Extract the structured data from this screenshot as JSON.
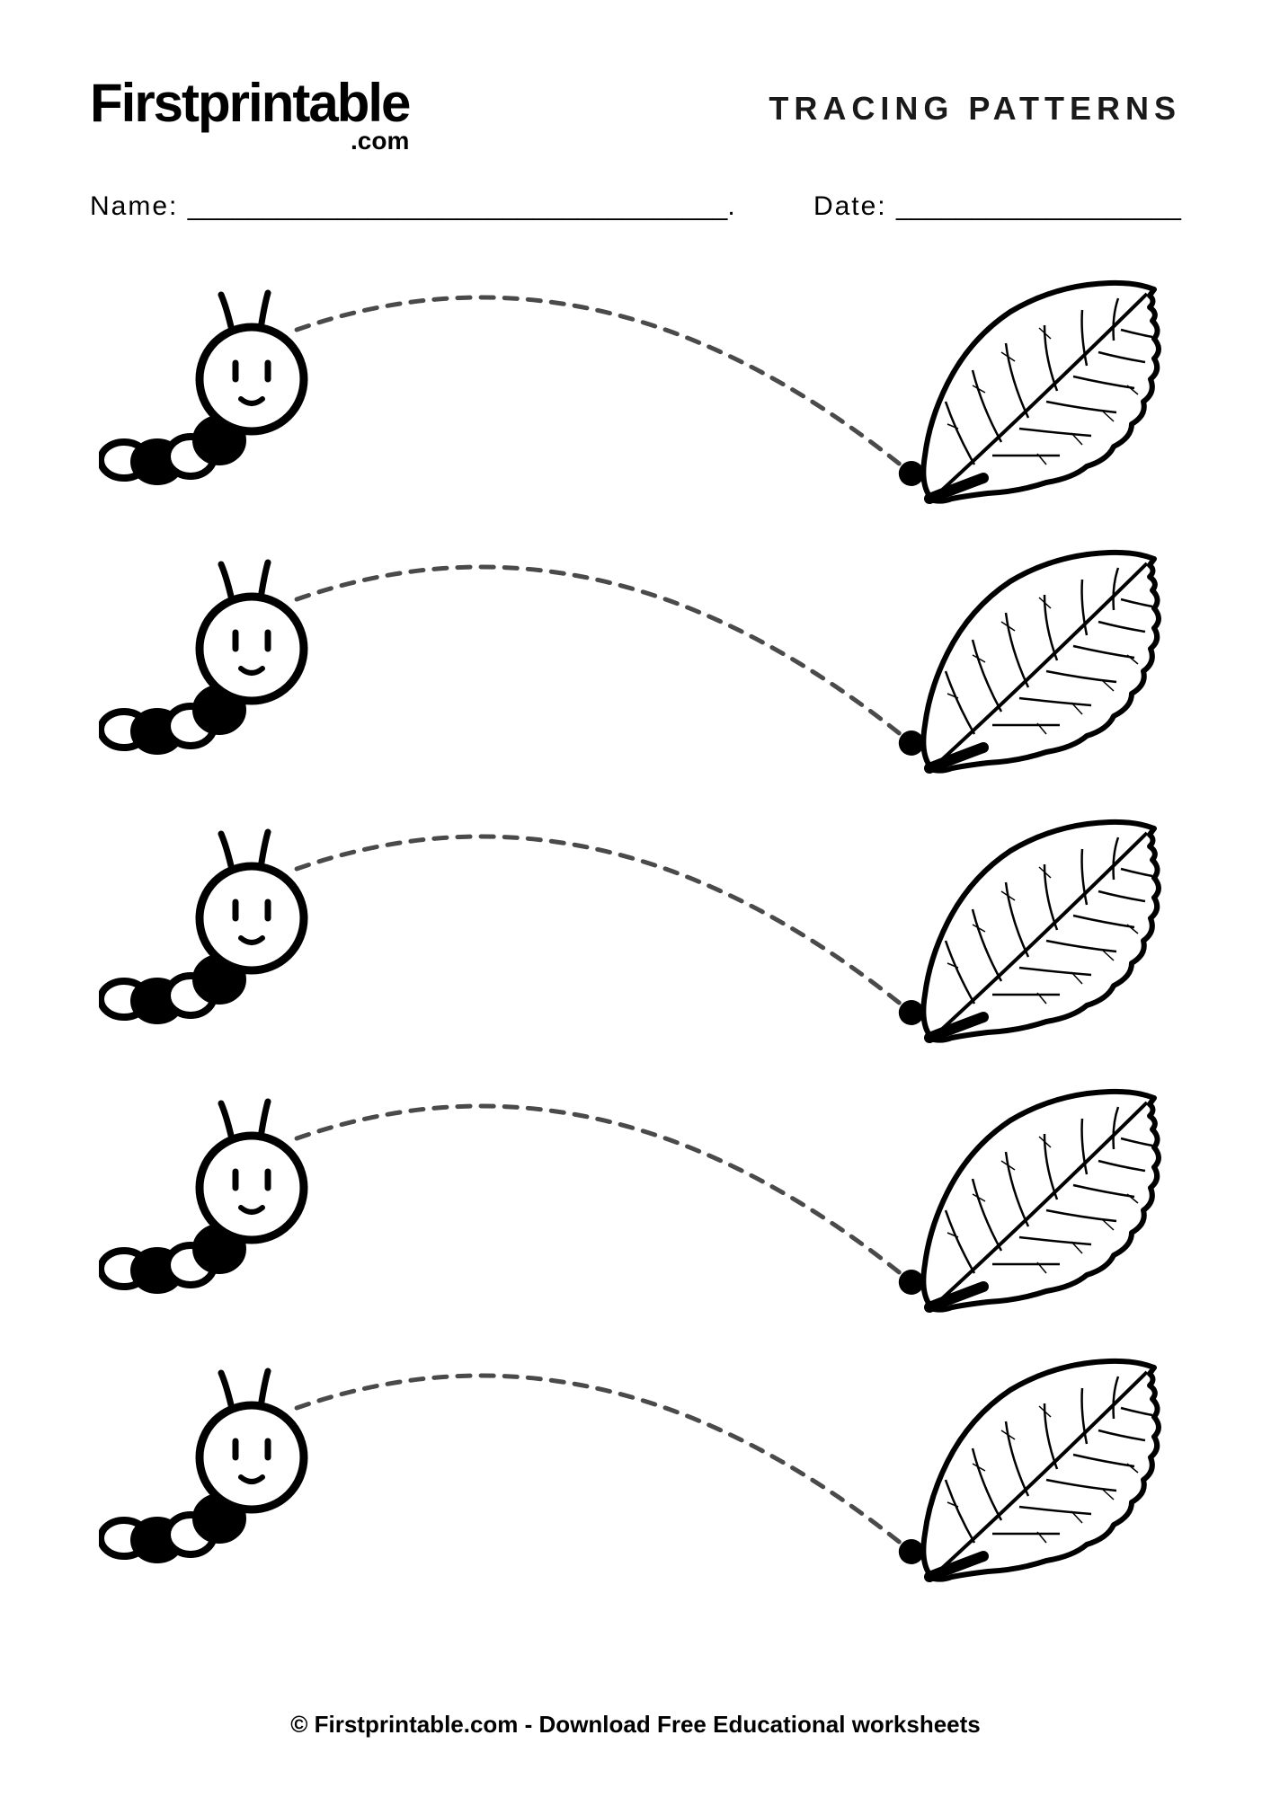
{
  "logo": {
    "main": "Firstprintable",
    "sub": ".com"
  },
  "heading": "TRACING PATTERNS",
  "name_label": "Name: ",
  "name_line": "____________________________________.",
  "date_label": "Date: ",
  "date_line": "___________________",
  "footer": "© Firstprintable.com - Download Free Educational worksheets",
  "row_count": 5,
  "style": {
    "background": "#ffffff",
    "text_color": "#000000",
    "dash_color": "#4a4a4a",
    "dash_width": 5,
    "dash_pattern": "14,12",
    "endpoint_radius": 14,
    "endpoint_color": "#000000",
    "caterpillar_stroke": "#000000",
    "caterpillar_fill_white": "#ffffff",
    "caterpillar_fill_black": "#000000",
    "leaf_stroke": "#000000",
    "logo_fontsize": 60,
    "heading_fontsize": 36,
    "heading_letterspacing": 6,
    "field_fontsize": 30,
    "footer_fontsize": 26
  }
}
